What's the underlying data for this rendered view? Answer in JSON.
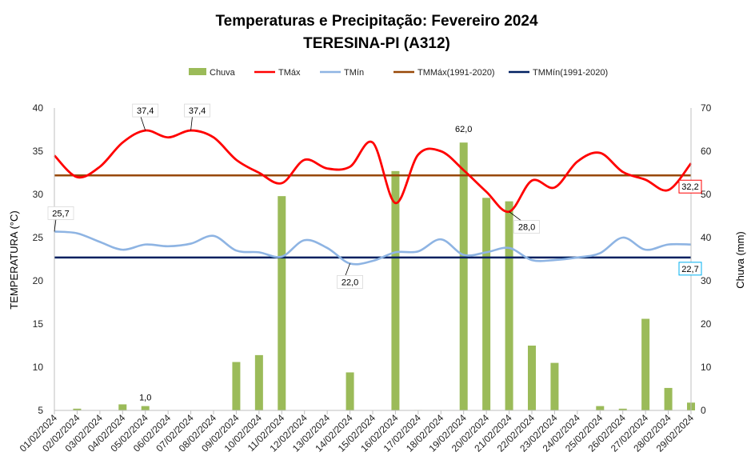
{
  "chart_data": {
    "type": "bar+line",
    "title": "Temperaturas e Precipitação: Fevereiro 2024",
    "subtitle": "TERESINA-PI (A312)",
    "ylabel_left": "TEMPERATURA (°C)",
    "ylabel_right": "Chuva (mm)",
    "ylim_left": [
      5,
      40
    ],
    "ylim_right": [
      0,
      70
    ],
    "yticks_left": [
      "5",
      "10",
      "15",
      "20",
      "25",
      "30",
      "35",
      "40"
    ],
    "yticks_right": [
      "0",
      "10",
      "20",
      "30",
      "40",
      "50",
      "60",
      "70"
    ],
    "categories": [
      "01/02/2024",
      "02/02/2024",
      "03/02/2024",
      "04/02/2024",
      "05/02/2024",
      "06/02/2024",
      "07/02/2024",
      "08/02/2024",
      "09/02/2024",
      "10/02/2024",
      "11/02/2024",
      "12/02/2024",
      "13/02/2024",
      "14/02/2024",
      "15/02/2024",
      "16/02/2024",
      "17/02/2024",
      "18/02/2024",
      "19/02/2024",
      "20/02/2024",
      "21/02/2024",
      "22/02/2024",
      "23/02/2024",
      "24/02/2024",
      "25/02/2024",
      "26/02/2024",
      "27/02/2024",
      "28/02/2024",
      "29/02/2024"
    ],
    "series": [
      {
        "name": "Chuva",
        "type": "bar",
        "axis": "right",
        "color": "#9bbb59",
        "values": [
          0,
          0.4,
          0,
          1.4,
          1.0,
          0,
          0,
          0,
          11.2,
          12.8,
          49.6,
          0,
          0,
          8.8,
          0,
          55.4,
          0.1,
          0,
          62.0,
          49.2,
          48.4,
          15.0,
          11.0,
          0,
          1.0,
          0.4,
          21.2,
          5.2,
          1.8
        ]
      },
      {
        "name": "TMáx",
        "type": "line",
        "axis": "left",
        "color": "#ff0000",
        "values": [
          34.5,
          32.0,
          33.2,
          36.0,
          37.4,
          36.6,
          37.4,
          36.6,
          34.0,
          32.5,
          31.3,
          34.0,
          33.0,
          33.2,
          36.0,
          29.0,
          34.6,
          35.0,
          32.8,
          30.3,
          28.0,
          31.6,
          30.8,
          33.8,
          34.8,
          32.6,
          31.7,
          30.5,
          33.6
        ]
      },
      {
        "name": "TMín",
        "type": "line",
        "axis": "left",
        "color": "#8eb4e3",
        "values": [
          25.7,
          25.5,
          24.5,
          23.6,
          24.2,
          24.0,
          24.3,
          25.2,
          23.5,
          23.3,
          22.8,
          24.7,
          23.8,
          22.0,
          22.3,
          23.3,
          23.4,
          24.8,
          23.0,
          23.3,
          23.8,
          22.4,
          22.4,
          22.7,
          23.2,
          25.0,
          23.6,
          24.2,
          24.2
        ]
      },
      {
        "name": "TMMáx(1991-2020)",
        "type": "line",
        "axis": "left",
        "color": "#984807",
        "constant": 32.2
      },
      {
        "name": "TMMín(1991-2020)",
        "type": "line",
        "axis": "left",
        "color": "#002060",
        "constant": 22.7
      }
    ],
    "annotations": [
      {
        "text": "37,4",
        "series": "TMáx",
        "index": 4
      },
      {
        "text": "37,4",
        "series": "TMáx",
        "index": 6
      },
      {
        "text": "28,0",
        "series": "TMáx",
        "index": 20
      },
      {
        "text": "25,7",
        "series": "TMín",
        "index": 0
      },
      {
        "text": "22,0",
        "series": "TMín",
        "index": 13
      },
      {
        "text": "62,0",
        "series": "Chuva",
        "index": 18
      },
      {
        "text": "1,0",
        "series": "Chuva",
        "index": 4
      },
      {
        "text": "32,2",
        "series": "TMMáx(1991-2020)",
        "index": 28,
        "boxed": true,
        "box_color": "#ff0000"
      },
      {
        "text": "22,7",
        "series": "TMMín(1991-2020)",
        "index": 28,
        "boxed": true,
        "box_color": "#00b0f0"
      }
    ],
    "legend": {
      "position": "top-center",
      "entries": [
        "Chuva",
        "TMáx",
        "TMín",
        "TMMáx(1991-2020)",
        "TMMín(1991-2020)"
      ]
    }
  }
}
